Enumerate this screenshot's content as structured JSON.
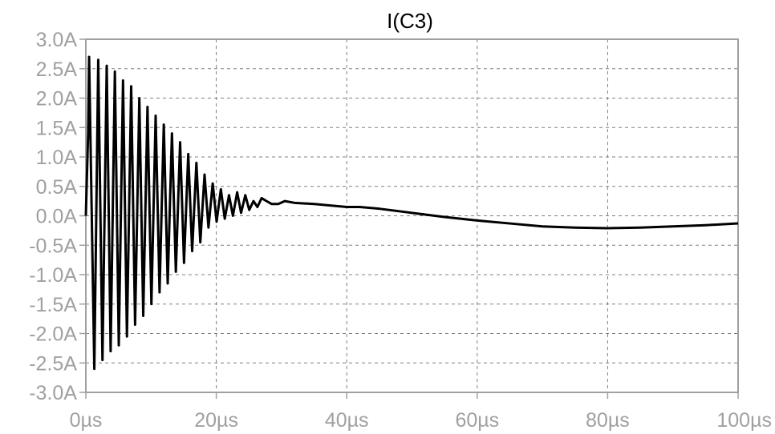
{
  "chart_data": {
    "type": "line",
    "title": "I(C3)",
    "xlabel": "",
    "ylabel": "",
    "grid": true,
    "xlim": [
      0,
      100
    ],
    "ylim": [
      -3.0,
      3.0
    ],
    "x_ticks": [
      0,
      20,
      40,
      60,
      80,
      100
    ],
    "x_tick_labels": [
      "0µs",
      "20µs",
      "40µs",
      "60µs",
      "80µs",
      "100µs"
    ],
    "y_ticks": [
      3.0,
      2.5,
      2.0,
      1.5,
      1.0,
      0.5,
      0.0,
      -0.5,
      -1.0,
      -1.5,
      -2.0,
      -2.5,
      -3.0
    ],
    "y_tick_labels": [
      "3.0A",
      "2.5A",
      "2.0A",
      "1.5A",
      "1.0A",
      "0.5A",
      "0.0A",
      "-0.5A",
      "-1.0A",
      "-1.5A",
      "-2.0A",
      "-2.5A",
      "-3.0A"
    ],
    "series": [
      {
        "name": "I(C3)",
        "color": "#000000",
        "x": [
          0,
          0.35,
          0.5,
          1.3,
          1.9,
          2.55,
          3.2,
          3.8,
          4.45,
          5.05,
          5.7,
          6.3,
          6.95,
          7.55,
          8.2,
          8.8,
          9.45,
          10.05,
          10.7,
          11.3,
          11.95,
          12.55,
          13.2,
          13.8,
          14.45,
          15.05,
          15.7,
          16.3,
          16.95,
          17.55,
          18.2,
          18.8,
          19.45,
          20.05,
          20.7,
          21.3,
          21.95,
          22.55,
          23.2,
          23.8,
          24.45,
          25.05,
          25.7,
          26.3,
          26.95,
          27.7,
          28.5,
          29.5,
          30.5,
          32,
          35,
          38,
          40,
          42,
          45,
          50,
          55,
          60,
          65,
          70,
          75,
          80,
          85,
          90,
          95,
          100
        ],
        "y": [
          0.0,
          1.4,
          2.7,
          -2.6,
          2.65,
          -2.45,
          2.55,
          -2.3,
          2.45,
          -2.2,
          2.3,
          -2.05,
          2.2,
          -1.85,
          2.0,
          -1.7,
          1.85,
          -1.5,
          1.7,
          -1.3,
          1.55,
          -1.15,
          1.4,
          -0.95,
          1.25,
          -0.8,
          1.05,
          -0.6,
          0.9,
          -0.45,
          0.7,
          -0.2,
          0.55,
          -0.1,
          0.45,
          -0.05,
          0.35,
          0.0,
          0.4,
          0.05,
          0.35,
          0.1,
          0.25,
          0.15,
          0.3,
          0.25,
          0.2,
          0.2,
          0.25,
          0.22,
          0.2,
          0.17,
          0.15,
          0.15,
          0.12,
          0.05,
          -0.02,
          -0.08,
          -0.13,
          -0.18,
          -0.2,
          -0.21,
          -0.2,
          -0.18,
          -0.16,
          -0.13
        ]
      }
    ]
  }
}
